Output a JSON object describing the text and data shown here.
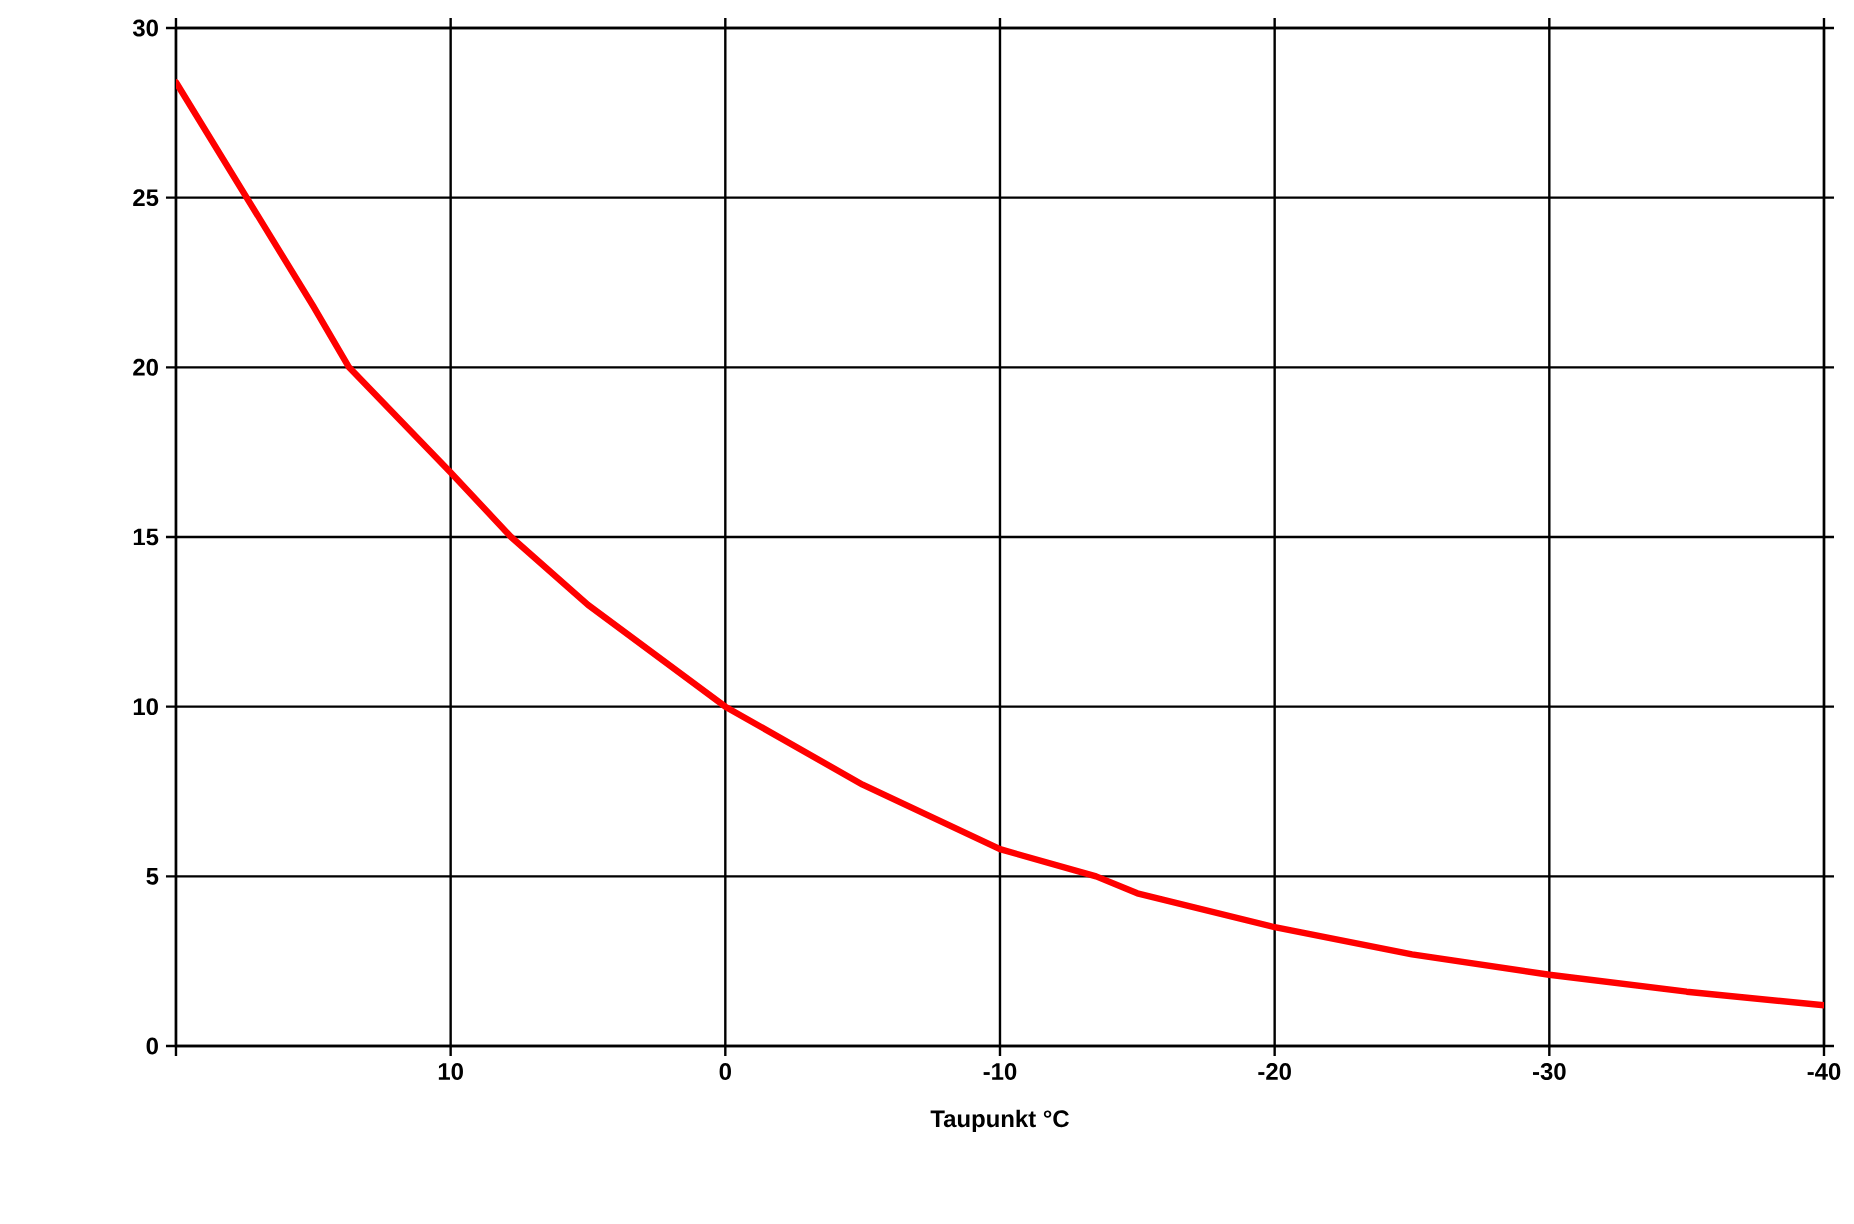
{
  "chart_data": {
    "type": "line",
    "xlabel": "Taupunkt °C",
    "x": [
      20,
      15,
      13.7,
      10,
      7.8,
      5,
      0,
      -5,
      -10,
      -13.5,
      -15,
      -20,
      -25,
      -30,
      -35,
      -40
    ],
    "series": [
      {
        "color": "#ff0000",
        "values": [
          28.4,
          21.8,
          20,
          16.9,
          15,
          13.0,
          10.0,
          7.7,
          5.8,
          5,
          4.5,
          3.5,
          2.7,
          2.1,
          1.6,
          1.2
        ]
      }
    ],
    "xlim": [
      20,
      -40
    ],
    "ylim": [
      0,
      30
    ],
    "xticks": [
      {
        "value": 20,
        "label": null
      },
      10,
      0,
      -10,
      -20,
      -30,
      -40
    ],
    "yticks": [
      0,
      5,
      10,
      15,
      20,
      25,
      30
    ],
    "grid": true,
    "marker": "none",
    "line_style": "solid"
  }
}
